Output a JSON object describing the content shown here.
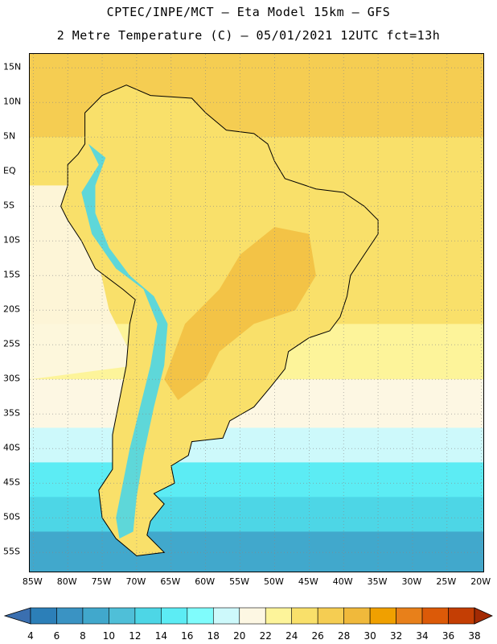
{
  "header": {
    "title_line1": "CPTEC/INPE/MCT –  Eta Model 15km – GFS",
    "title_line2": "2 Metre Temperature (C) – 05/01/2021 12UTC fct=13h"
  },
  "map": {
    "lat_labels": [
      "15N",
      "10N",
      "5N",
      "EQ",
      "5S",
      "10S",
      "15S",
      "20S",
      "25S",
      "30S",
      "35S",
      "40S",
      "45S",
      "50S",
      "55S"
    ],
    "lat_values": [
      15,
      10,
      5,
      0,
      -5,
      -10,
      -15,
      -20,
      -25,
      -30,
      -35,
      -40,
      -45,
      -50,
      -55
    ],
    "lon_labels": [
      "85W",
      "80W",
      "75W",
      "70W",
      "65W",
      "60W",
      "55W",
      "50W",
      "45W",
      "40W",
      "35W",
      "30W",
      "25W",
      "20W"
    ],
    "lon_values": [
      -85,
      -80,
      -75,
      -70,
      -65,
      -60,
      -55,
      -50,
      -45,
      -40,
      -35,
      -30,
      -25,
      -20
    ],
    "lat_range": [
      -58,
      17
    ],
    "lon_range": [
      -85.5,
      -19.5
    ],
    "grid": true,
    "ocean_zones": [
      {
        "lat_from": 17,
        "lat_to": 5,
        "value": 27
      },
      {
        "lat_from": 5,
        "lat_to": -22,
        "value": 25
      },
      {
        "lat_from": -22,
        "lat_to": -30,
        "value": 23
      },
      {
        "lat_from": -30,
        "lat_to": -37,
        "value": 21
      },
      {
        "lat_from": -37,
        "lat_to": -42,
        "value": 18
      },
      {
        "lat_from": -42,
        "lat_to": -47,
        "value": 15
      },
      {
        "lat_from": -47,
        "lat_to": -52,
        "value": 12
      },
      {
        "lat_from": -52,
        "lat_to": -58,
        "value": 8
      }
    ],
    "pacific_cool_value": 21,
    "land_value": 25,
    "hot_spot_value": 29,
    "andes_value": 12
  },
  "colorbar": {
    "labels": [
      "4",
      "6",
      "8",
      "10",
      "12",
      "14",
      "16",
      "18",
      "20",
      "22",
      "24",
      "26",
      "28",
      "30",
      "32",
      "34",
      "36",
      "38"
    ],
    "colors": [
      "#3a6fb0",
      "#2c7fb8",
      "#3a93c3",
      "#41a8cc",
      "#4fbfd8",
      "#4dd6e6",
      "#5cecf4",
      "#7ffcfc",
      "#cdf9fb",
      "#fdf7e3",
      "#fdf49a",
      "#f9e06a",
      "#f5cd52",
      "#f0b93b",
      "#f0a000",
      "#e8801a",
      "#dc5a08",
      "#c43e04",
      "#a32a03"
    ]
  }
}
